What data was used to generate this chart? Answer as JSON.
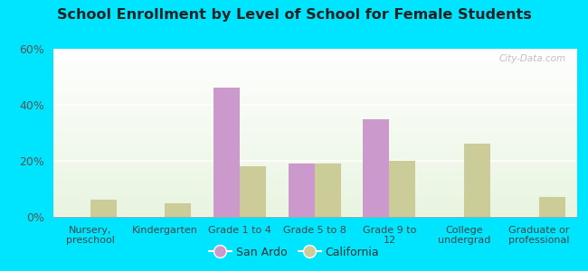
{
  "title": "School Enrollment by Level of School for Female Students",
  "categories": [
    "Nursery,\npreschool",
    "Kindergarten",
    "Grade 1 to 4",
    "Grade 5 to 8",
    "Grade 9 to\n12",
    "College\nundergrad",
    "Graduate or\nprofessional"
  ],
  "san_ardo": [
    0,
    0,
    46,
    19,
    35,
    0,
    0
  ],
  "california": [
    6,
    5,
    18,
    19,
    20,
    26,
    7
  ],
  "san_ardo_color": "#cc99cc",
  "california_color": "#cccc99",
  "background_outer": "#00e5ff",
  "ylim": [
    0,
    60
  ],
  "yticks": [
    0,
    20,
    40,
    60
  ],
  "ytick_labels": [
    "0%",
    "20%",
    "40%",
    "60%"
  ],
  "bar_width": 0.35,
  "legend_labels": [
    "San Ardo",
    "California"
  ],
  "watermark": "City-Data.com"
}
